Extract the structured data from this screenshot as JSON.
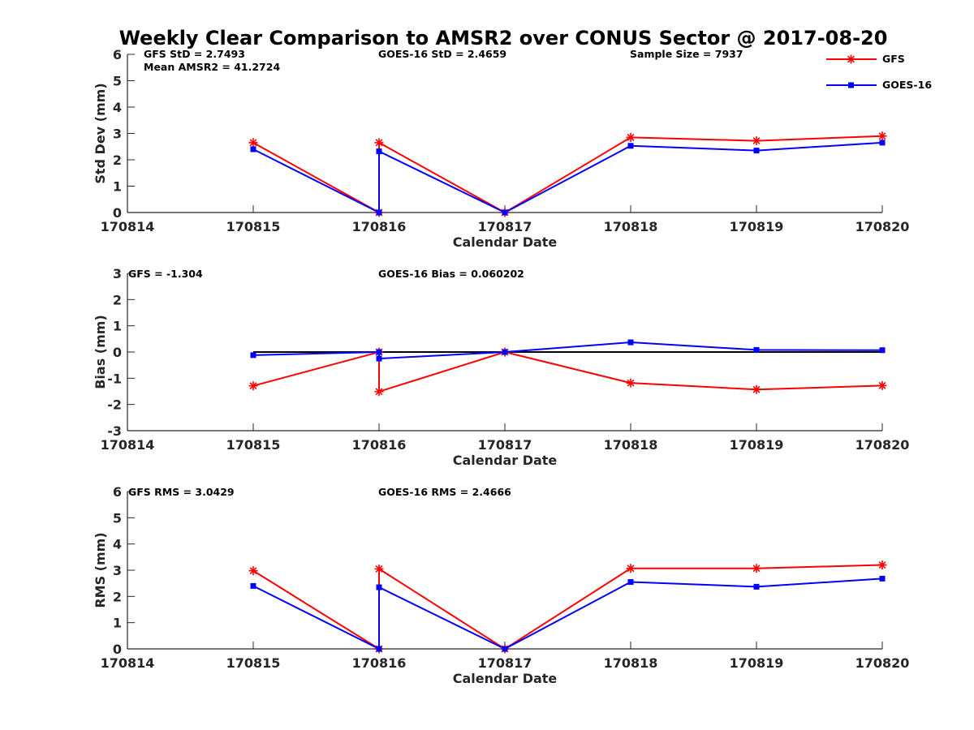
{
  "figure": {
    "title": "Weekly Clear Comparison to AMSR2 over CONUS Sector @ 2017-08-20"
  },
  "legend": {
    "placement": "top-right",
    "items": [
      {
        "label": "GFS",
        "color": "#ff0000",
        "marker": "asterisk"
      },
      {
        "label": "GOES-16",
        "color": "#0000ff",
        "marker": "square"
      }
    ]
  },
  "colors": {
    "gfs": "#ff0000",
    "goes16": "#0000ff",
    "axis": "#262626",
    "zero_line": "#000000"
  },
  "chart_data": [
    {
      "type": "line",
      "xlabel": "Calendar Date",
      "ylabel": "Std Dev (mm)",
      "xlim": [
        170814,
        170820
      ],
      "ylim": [
        0,
        6
      ],
      "xticks": [
        "170814",
        "170815",
        "170816",
        "170817",
        "170818",
        "170819",
        "170820"
      ],
      "yticks": [
        0,
        1,
        2,
        3,
        4,
        5,
        6
      ],
      "grid": false,
      "annotations": [
        "GFS StD = 2.7493",
        "Mean AMSR2 = 41.2724",
        "GOES-16 StD = 2.4659",
        "Sample Size = 7937"
      ],
      "series": [
        {
          "name": "GFS",
          "x": [
            170815,
            170816,
            170816,
            170817,
            170818,
            170819,
            170820
          ],
          "y": [
            2.65,
            0,
            2.65,
            0,
            2.85,
            2.72,
            2.9
          ]
        },
        {
          "name": "GOES-16",
          "x": [
            170815,
            170816,
            170816,
            170817,
            170818,
            170819,
            170820
          ],
          "y": [
            2.4,
            0,
            2.32,
            0,
            2.53,
            2.35,
            2.65
          ]
        }
      ],
      "reference_line": null
    },
    {
      "type": "line",
      "xlabel": "Calendar Date",
      "ylabel": "Bias (mm)",
      "xlim": [
        170814,
        170820
      ],
      "ylim": [
        -3,
        3
      ],
      "xticks": [
        "170814",
        "170815",
        "170816",
        "170817",
        "170818",
        "170819",
        "170820"
      ],
      "yticks": [
        -3,
        -2,
        -1,
        0,
        1,
        2,
        3
      ],
      "grid": false,
      "annotations": [
        "GFS = -1.304",
        "GOES-16 Bias  = 0.060202"
      ],
      "series": [
        {
          "name": "GFS",
          "x": [
            170815,
            170816,
            170816,
            170817,
            170818,
            170819,
            170820
          ],
          "y": [
            -1.29,
            0,
            -1.51,
            0,
            -1.18,
            -1.43,
            -1.28
          ]
        },
        {
          "name": "GOES-16",
          "x": [
            170815,
            170816,
            170816,
            170817,
            170818,
            170819,
            170820
          ],
          "y": [
            -0.12,
            0,
            -0.25,
            0,
            0.37,
            0.08,
            0.07
          ]
        }
      ],
      "reference_line": 0
    },
    {
      "type": "line",
      "xlabel": "Calendar Date",
      "ylabel": "RMS (mm)",
      "xlim": [
        170814,
        170820
      ],
      "ylim": [
        0,
        6
      ],
      "xticks": [
        "170814",
        "170815",
        "170816",
        "170817",
        "170818",
        "170819",
        "170820"
      ],
      "yticks": [
        0,
        1,
        2,
        3,
        4,
        5,
        6
      ],
      "grid": false,
      "annotations": [
        "GFS RMS = 3.0429",
        "GOES-16 RMS = 2.4666"
      ],
      "series": [
        {
          "name": "GFS",
          "x": [
            170815,
            170816,
            170816,
            170817,
            170818,
            170819,
            170820
          ],
          "y": [
            2.98,
            0,
            3.05,
            0,
            3.07,
            3.07,
            3.2
          ]
        },
        {
          "name": "GOES-16",
          "x": [
            170815,
            170816,
            170816,
            170817,
            170818,
            170819,
            170820
          ],
          "y": [
            2.4,
            0,
            2.35,
            0,
            2.55,
            2.37,
            2.68
          ]
        }
      ],
      "reference_line": null
    }
  ]
}
